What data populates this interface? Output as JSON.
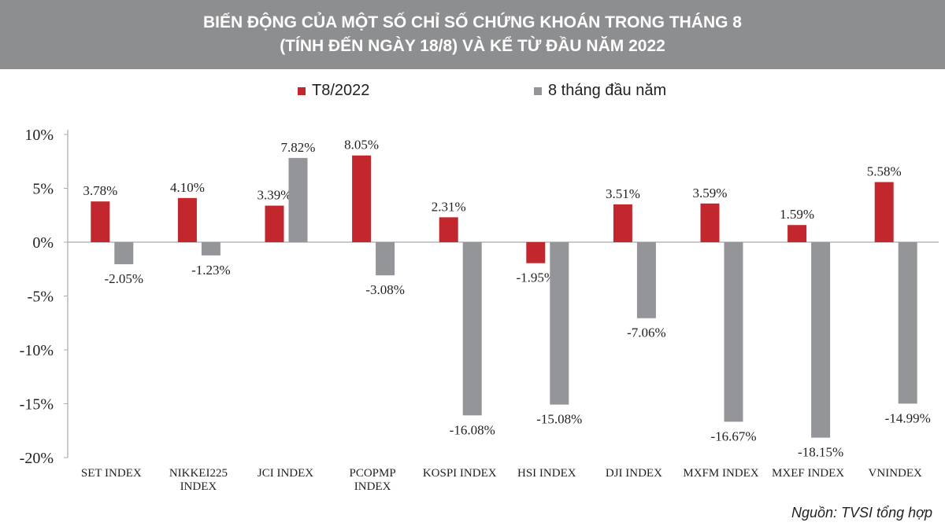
{
  "title_line1": "BIẾN ĐỘNG CỦA MỘT SỐ CHỈ SỐ CHỨNG KHOÁN TRONG THÁNG 8",
  "title_line2": "(TÍNH ĐẾN NGÀY 18/8) VÀ KỂ TỪ ĐẦU NĂM 2022",
  "source": "Nguồn: TVSI tổng hợp",
  "colors": {
    "red": "#c1272d",
    "gray": "#939598",
    "axis": "#a7a9ac",
    "text": "#231f20"
  },
  "chart_data": {
    "type": "bar",
    "categories": [
      [
        "SET INDEX"
      ],
      [
        "NIKKEI225",
        "INDEX"
      ],
      [
        "JCI INDEX"
      ],
      [
        "PCOPMP",
        "INDEX"
      ],
      [
        "KOSPI INDEX"
      ],
      [
        "HSI INDEX"
      ],
      [
        "DJI INDEX"
      ],
      [
        "MXFM INDEX"
      ],
      [
        "MXEF INDEX"
      ],
      [
        "VNINDEX"
      ]
    ],
    "series": [
      {
        "name": "T8/2022",
        "color": "#c1272d",
        "values": [
          3.78,
          4.1,
          3.39,
          8.05,
          2.31,
          -1.95,
          3.51,
          3.59,
          1.59,
          5.58
        ],
        "labels": [
          "3.78%",
          "4.10%",
          "3.39%",
          "8.05%",
          "2.31%",
          "-1.95%",
          "3.51%",
          "3.59%",
          "1.59%",
          "5.58%"
        ]
      },
      {
        "name": "8 tháng đầu năm",
        "color": "#939598",
        "values": [
          -2.05,
          -1.23,
          7.82,
          -3.08,
          -16.08,
          -15.08,
          -7.06,
          -16.67,
          -18.15,
          -14.99
        ],
        "labels": [
          "-2.05%",
          "-1.23%",
          "7.82%",
          "-3.08%",
          "-16.08%",
          "-15.08%",
          "-7.06%",
          "-16.67%",
          "-18.15%",
          "-14.99%"
        ]
      }
    ],
    "yticks": [
      10,
      5,
      0,
      -5,
      -10,
      -15,
      -20
    ],
    "ytick_labels": [
      "10%",
      "5%",
      "0%",
      "-5%",
      "-10%",
      "-15%",
      "-20%"
    ],
    "ylim": [
      -20,
      10
    ],
    "grid": false,
    "legend_position": "top-center"
  }
}
